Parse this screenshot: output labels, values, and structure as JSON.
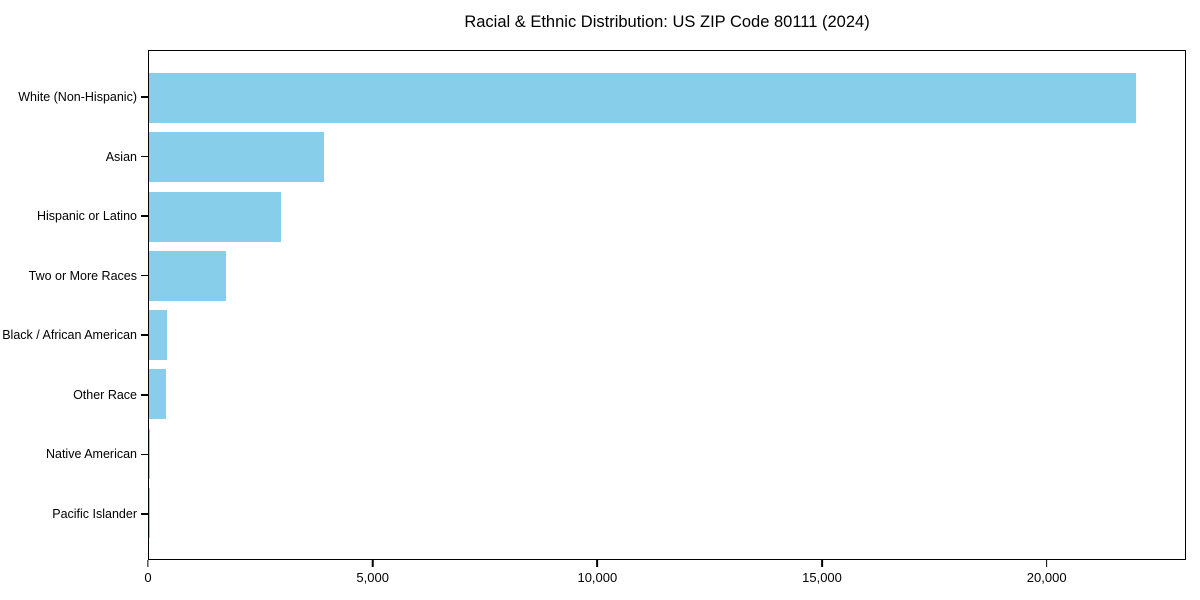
{
  "title": "Racial & Ethnic Distribution: US ZIP Code 80111 (2024)",
  "colors": {
    "bar": "#87CEEB",
    "spine": "#000000",
    "text": "#000000",
    "background": "#FFFFFF"
  },
  "chart_data": {
    "type": "bar",
    "orientation": "horizontal",
    "title": "Racial & Ethnic Distribution: US ZIP Code 80111 (2024)",
    "xlabel": "",
    "ylabel": "",
    "categories": [
      "White (Non-Hispanic)",
      "Asian",
      "Hispanic or Latino",
      "Two or More Races",
      "Black / African American",
      "Other Race",
      "Native American",
      "Pacific Islander"
    ],
    "values": [
      22000,
      3900,
      2950,
      1720,
      400,
      380,
      30,
      10
    ],
    "xlim": [
      0,
      23100
    ],
    "xticks": [
      0,
      5000,
      10000,
      15000,
      20000
    ],
    "xtick_labels": [
      "0",
      "5,000",
      "10,000",
      "15,000",
      "20,000"
    ],
    "grid": false,
    "legend": null,
    "bar_color": "#87CEEB"
  }
}
